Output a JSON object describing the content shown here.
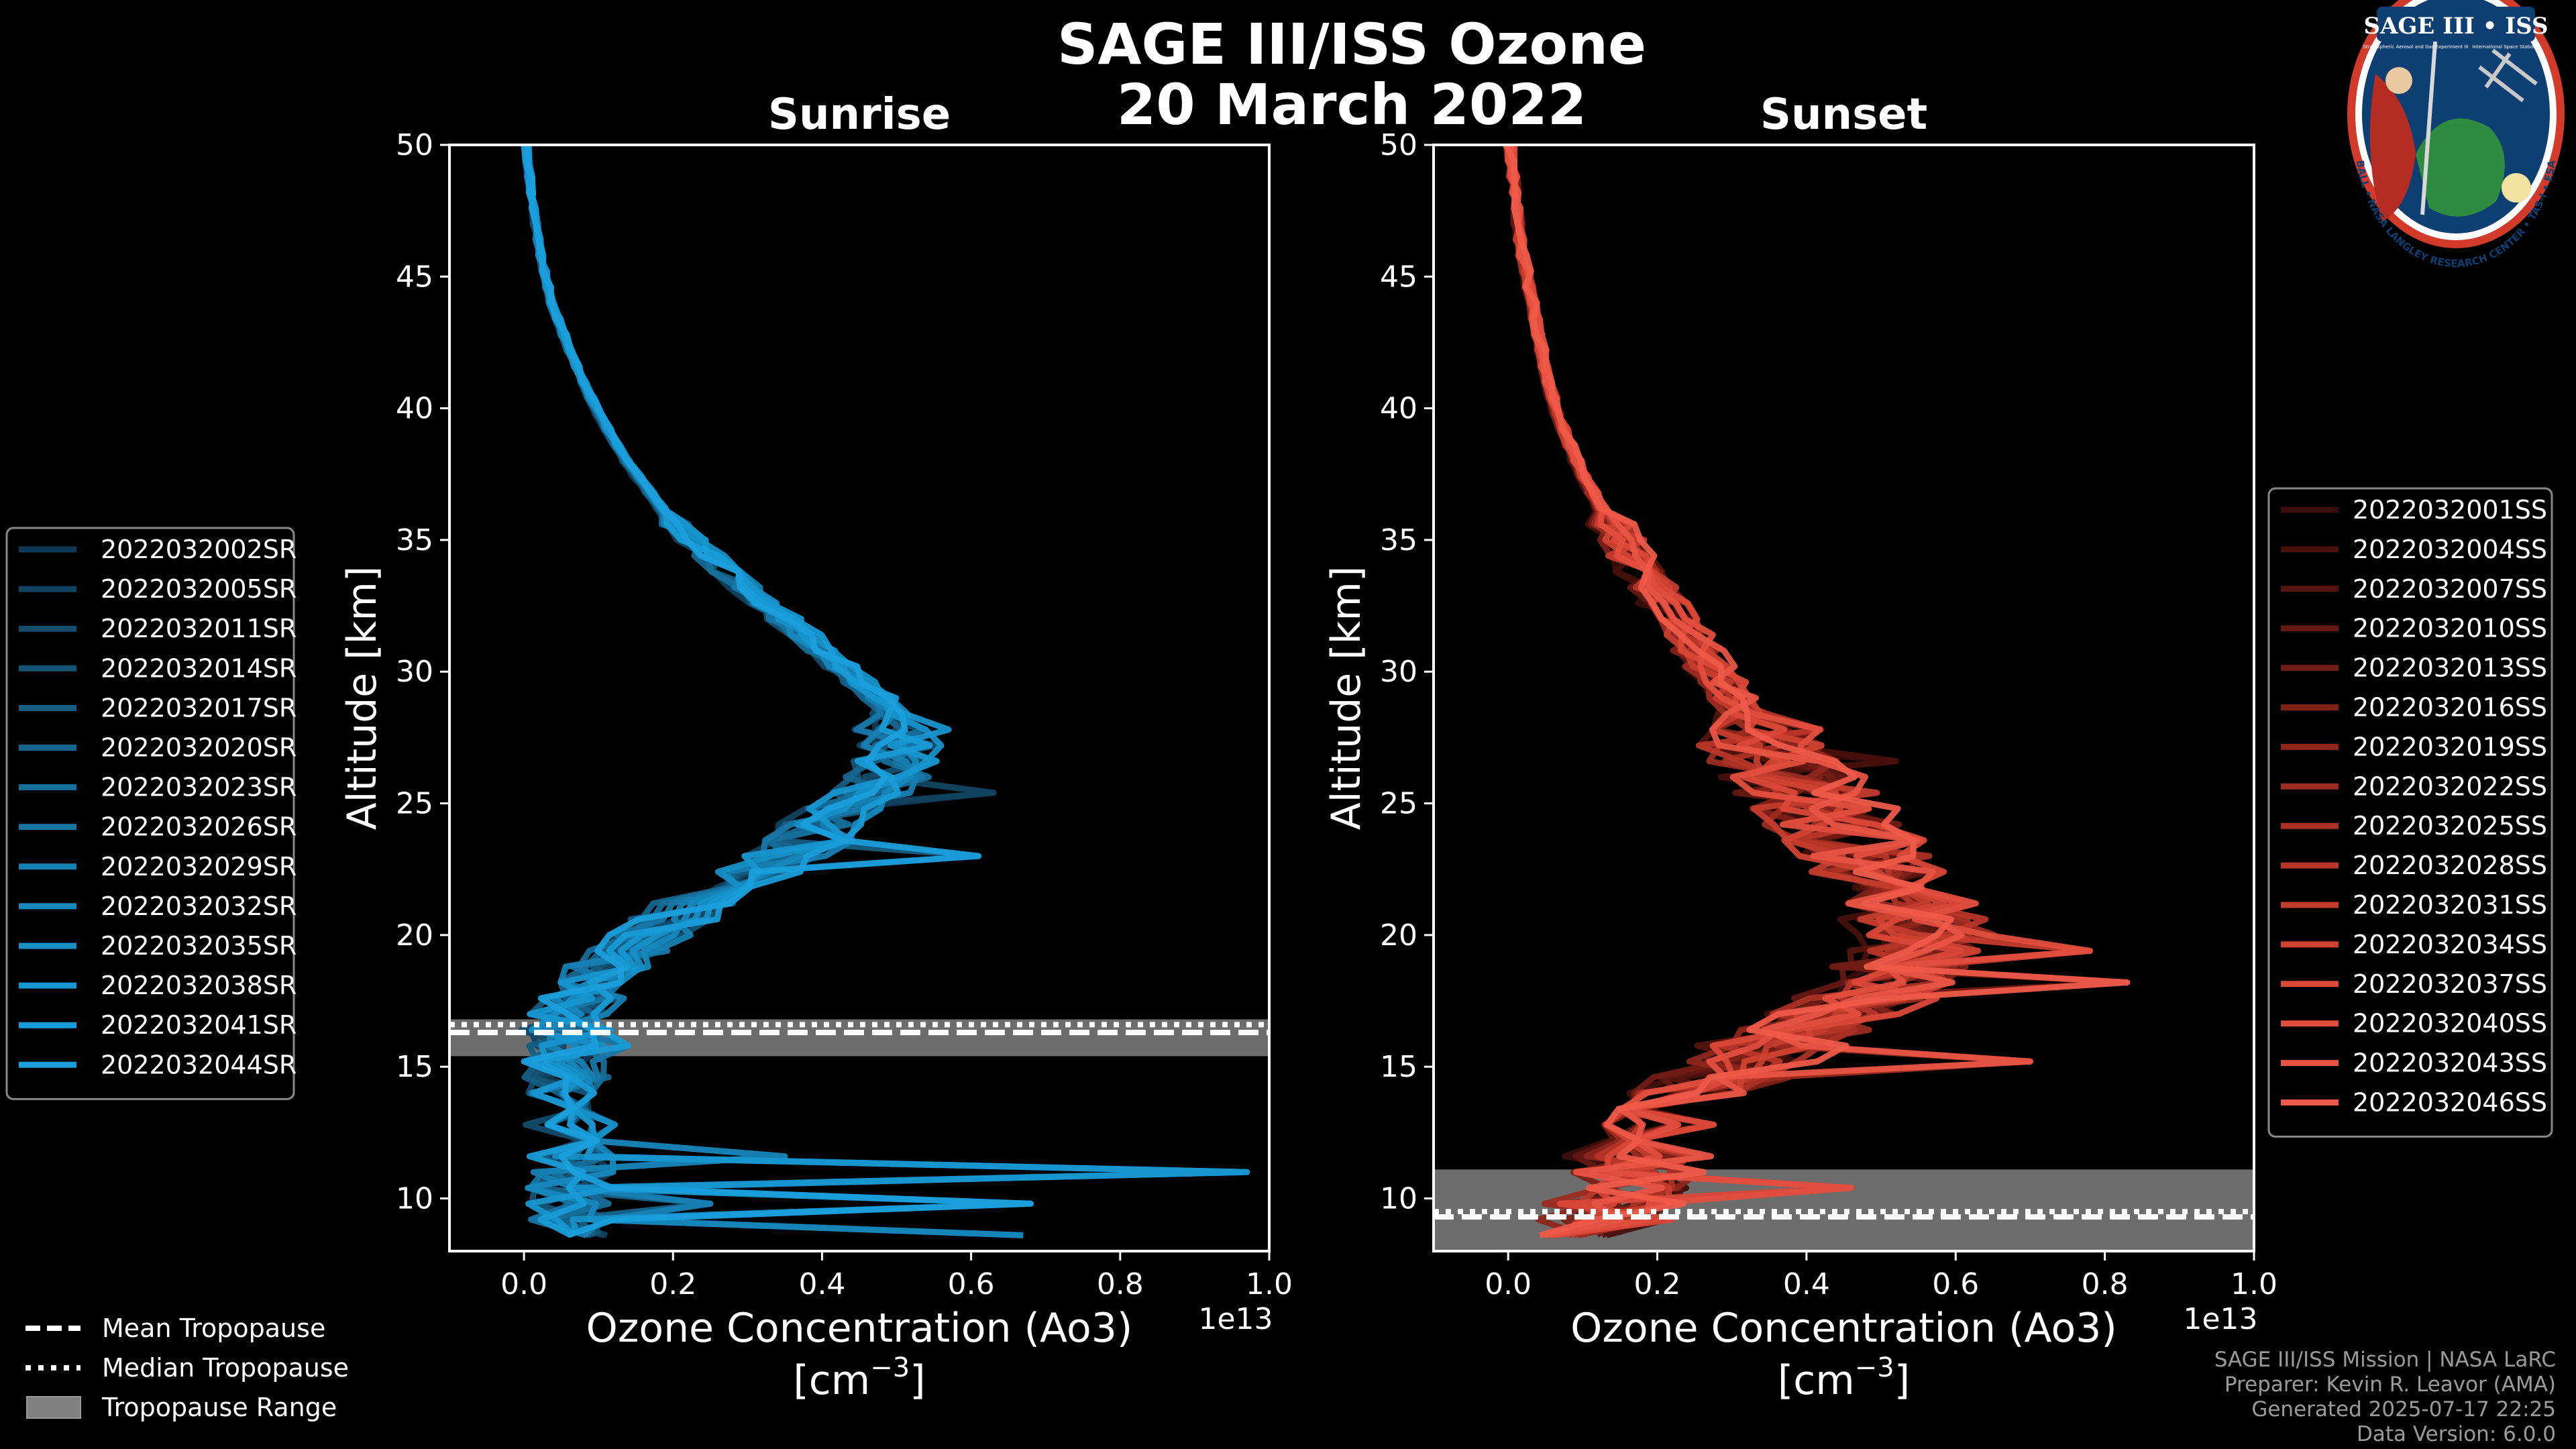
{
  "chart_data": [
    {
      "type": "line",
      "panel": "sunrise",
      "title": "Sunrise",
      "xlabel": "Ozone Concentration (Ao3)",
      "xlabel_units": "[cm",
      "xlabel_exp": "−3",
      "xlabel_close": "]",
      "ylabel": "Altitude [km]",
      "x_offset_label": "1e13",
      "xlim": [
        -0.1,
        1.0
      ],
      "ylim": [
        8,
        50
      ],
      "xticks": [
        "0.0",
        "0.2",
        "0.4",
        "0.6",
        "0.8",
        "1.0"
      ],
      "yticks": [
        "10",
        "15",
        "20",
        "25",
        "30",
        "35",
        "40",
        "45",
        "50"
      ],
      "tropopause": {
        "mean": 16.3,
        "median": 16.6,
        "range": [
          15.4,
          16.8
        ]
      },
      "base_profile": {
        "altitude": [
          50,
          48,
          46,
          44,
          42,
          40,
          38,
          36,
          34,
          32,
          30,
          29,
          28,
          27,
          26,
          25,
          24,
          23,
          22,
          21,
          20,
          19,
          18,
          17,
          16,
          15,
          14,
          13,
          12,
          11,
          10,
          9,
          8.3
        ],
        "ozone": [
          0.003,
          0.01,
          0.02,
          0.035,
          0.06,
          0.09,
          0.13,
          0.18,
          0.25,
          0.33,
          0.41,
          0.45,
          0.48,
          0.48,
          0.46,
          0.42,
          0.38,
          0.33,
          0.27,
          0.21,
          0.16,
          0.11,
          0.08,
          0.06,
          0.05,
          0.05,
          0.06,
          0.06,
          0.06,
          0.06,
          0.06,
          0.06,
          0.06
        ]
      },
      "spikes": [
        {
          "alt": 25.5,
          "x": 0.63
        },
        {
          "alt": 23.0,
          "x": 0.61
        },
        {
          "alt": 15.5,
          "x": 0.14
        },
        {
          "alt": 11.0,
          "x": 0.97
        },
        {
          "alt": 10.0,
          "x": 0.68
        },
        {
          "alt": 8.5,
          "x": 0.67
        },
        {
          "alt": 9.5,
          "x": 0.25
        },
        {
          "alt": 11.5,
          "x": 0.35
        }
      ],
      "series": [
        {
          "name": "2022032002SR",
          "color": "#0f3a57"
        },
        {
          "name": "2022032005SR",
          "color": "#11425f"
        },
        {
          "name": "2022032011SR",
          "color": "#134b6b"
        },
        {
          "name": "2022032014SR",
          "color": "#145476"
        },
        {
          "name": "2022032017SR",
          "color": "#155d82"
        },
        {
          "name": "2022032020SR",
          "color": "#16658e"
        },
        {
          "name": "2022032023SR",
          "color": "#166e9a"
        },
        {
          "name": "2022032026SR",
          "color": "#1677a6"
        },
        {
          "name": "2022032029SR",
          "color": "#1680b2"
        },
        {
          "name": "2022032032SR",
          "color": "#1688bd"
        },
        {
          "name": "2022032035SR",
          "color": "#1690c7"
        },
        {
          "name": "2022032038SR",
          "color": "#1796d0"
        },
        {
          "name": "2022032041SR",
          "color": "#189bd6"
        },
        {
          "name": "2022032044SR",
          "color": "#1a9fdc"
        }
      ]
    },
    {
      "type": "line",
      "panel": "sunset",
      "title": "Sunset",
      "xlabel": "Ozone Concentration (Ao3)",
      "xlabel_units": "[cm",
      "xlabel_exp": "−3",
      "xlabel_close": "]",
      "ylabel": "Altitude [km]",
      "x_offset_label": "1e13",
      "xlim": [
        -0.1,
        1.0
      ],
      "ylim": [
        8,
        50
      ],
      "xticks": [
        "0.0",
        "0.2",
        "0.4",
        "0.6",
        "0.8",
        "1.0"
      ],
      "yticks": [
        "10",
        "15",
        "20",
        "25",
        "30",
        "35",
        "40",
        "45",
        "50"
      ],
      "tropopause": {
        "mean": 9.3,
        "median": 9.5,
        "range": [
          8.0,
          11.1
        ]
      },
      "base_profile": {
        "altitude": [
          50,
          48,
          46,
          44,
          42,
          40,
          38,
          36,
          34,
          32,
          30,
          28,
          26,
          24,
          22,
          21,
          20,
          19,
          18,
          17,
          16,
          15,
          14,
          13,
          12,
          11,
          10,
          9,
          8.3
        ],
        "ozone": [
          0.003,
          0.01,
          0.02,
          0.035,
          0.05,
          0.07,
          0.1,
          0.14,
          0.19,
          0.25,
          0.3,
          0.36,
          0.42,
          0.49,
          0.56,
          0.6,
          0.62,
          0.6,
          0.55,
          0.48,
          0.4,
          0.34,
          0.28,
          0.24,
          0.2,
          0.18,
          0.16,
          0.14,
          0.12
        ]
      },
      "spikes": [
        {
          "alt": 26.5,
          "x": 0.52
        },
        {
          "alt": 18.3,
          "x": 0.83
        },
        {
          "alt": 15.0,
          "x": 0.7
        },
        {
          "alt": 19.5,
          "x": 0.78
        },
        {
          "alt": 10.5,
          "x": 0.46
        },
        {
          "alt": 9.0,
          "x": 0.1
        }
      ],
      "series": [
        {
          "name": "2022032001SS",
          "color": "#3a0d0a"
        },
        {
          "name": "2022032004SS",
          "color": "#47100c"
        },
        {
          "name": "2022032007SS",
          "color": "#55140f"
        },
        {
          "name": "2022032010SS",
          "color": "#631812"
        },
        {
          "name": "2022032013SS",
          "color": "#711c15"
        },
        {
          "name": "2022032016SS",
          "color": "#802118"
        },
        {
          "name": "2022032019SS",
          "color": "#8e261c"
        },
        {
          "name": "2022032022SS",
          "color": "#9c2b20"
        },
        {
          "name": "2022032025SS",
          "color": "#aa3124"
        },
        {
          "name": "2022032028SS",
          "color": "#b73628"
        },
        {
          "name": "2022032031SS",
          "color": "#c43c2d"
        },
        {
          "name": "2022032034SS",
          "color": "#d04232"
        },
        {
          "name": "2022032037SS",
          "color": "#da4838"
        },
        {
          "name": "2022032040SS",
          "color": "#e24e3e"
        },
        {
          "name": "2022032043SS",
          "color": "#e85444"
        },
        {
          "name": "2022032046SS",
          "color": "#ee5a49"
        }
      ]
    }
  ],
  "header": {
    "title_line1": "SAGE III/ISS Ozone",
    "title_line2": "20 March 2022"
  },
  "tropopause_legend": {
    "mean": "Mean Tropopause",
    "median": "Median Tropopause",
    "range": "Tropopause Range"
  },
  "logo": {
    "title": "SAGE III • ISS",
    "ring_text": "BALL • NASA LANGLEY RESEARCH CENTER • TAS-I • ESA",
    "sub_left": "Stratospheric Aerosol and Gas Experiment III",
    "sub_right": "International Space Station"
  },
  "credits": [
    "SAGE III/ISS Mission | NASA LaRC",
    "Preparer: Kevin R. Leavor (AMA)",
    "Generated 2025-07-17 22:25",
    "Data Version: 6.0.0"
  ],
  "colors": {
    "background": "#000000",
    "tropopause_fill": "#808080",
    "axes": "#ffffff"
  }
}
